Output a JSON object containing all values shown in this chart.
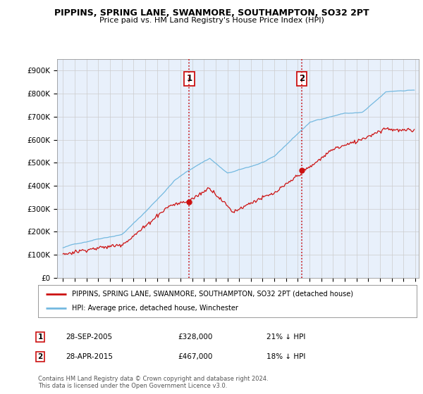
{
  "title": "PIPPINS, SPRING LANE, SWANMORE, SOUTHAMPTON, SO32 2PT",
  "subtitle": "Price paid vs. HM Land Registry's House Price Index (HPI)",
  "hpi_label": "HPI: Average price, detached house, Winchester",
  "property_label": "PIPPINS, SPRING LANE, SWANMORE, SOUTHAMPTON, SO32 2PT (detached house)",
  "sale1_date": "28-SEP-2005",
  "sale1_price": 328000,
  "sale1_pct": "21% ↓ HPI",
  "sale1_year": 2005.75,
  "sale2_date": "28-APR-2015",
  "sale2_price": 467000,
  "sale2_pct": "18% ↓ HPI",
  "sale2_year": 2015.33,
  "hpi_color": "#74b9e0",
  "property_color": "#cc1111",
  "sale_line_color": "#cc1111",
  "background_color": "#ffffff",
  "plot_bg_color": "#eef4fb",
  "grid_color": "#cccccc",
  "footnote": "Contains HM Land Registry data © Crown copyright and database right 2024.\nThis data is licensed under the Open Government Licence v3.0.",
  "ylim": [
    0,
    950000
  ],
  "yticks": [
    0,
    100000,
    200000,
    300000,
    400000,
    500000,
    600000,
    700000,
    800000,
    900000
  ],
  "ytick_labels": [
    "£0",
    "£100K",
    "£200K",
    "£300K",
    "£400K",
    "£500K",
    "£600K",
    "£700K",
    "£800K",
    "£900K"
  ],
  "xlim_left": 1994.5,
  "xlim_right": 2025.3
}
